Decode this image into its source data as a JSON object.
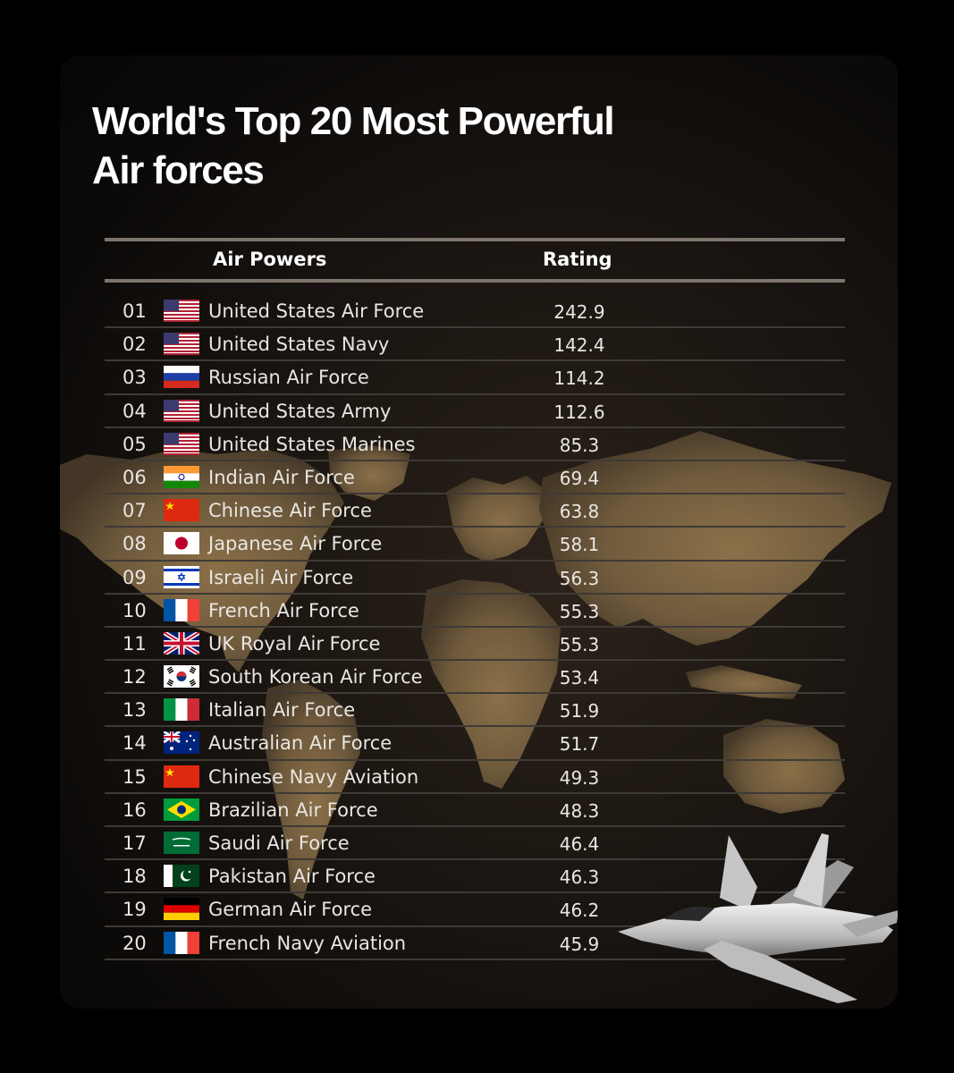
{
  "title_line1": "World's Top 20 Most Powerful",
  "title_line2": "Air forces",
  "headers": {
    "name": "Air Powers",
    "rating": "Rating"
  },
  "rows": [
    {
      "rank": "01",
      "name": "United States Air Force",
      "rating": "242.9",
      "flag": "usa-flag-icon"
    },
    {
      "rank": "02",
      "name": "United States Navy",
      "rating": "142.4",
      "flag": "usa-flag-icon"
    },
    {
      "rank": "03",
      "name": "Russian Air Force",
      "rating": "114.2",
      "flag": "russia-flag-icon"
    },
    {
      "rank": "04",
      "name": "United States Army",
      "rating": "112.6",
      "flag": "usa-flag-icon"
    },
    {
      "rank": "05",
      "name": "United States Marines",
      "rating": "85.3",
      "flag": "usa-flag-icon"
    },
    {
      "rank": "06",
      "name": "Indian Air Force",
      "rating": "69.4",
      "flag": "india-flag-icon"
    },
    {
      "rank": "07",
      "name": "Chinese Air Force",
      "rating": "63.8",
      "flag": "china-flag-icon"
    },
    {
      "rank": "08",
      "name": "Japanese Air Force",
      "rating": "58.1",
      "flag": "japan-flag-icon"
    },
    {
      "rank": "09",
      "name": "Israeli Air Force",
      "rating": "56.3",
      "flag": "israel-flag-icon"
    },
    {
      "rank": "10",
      "name": "French Air Force",
      "rating": "55.3",
      "flag": "france-flag-icon"
    },
    {
      "rank": "11",
      "name": "UK Royal Air Force",
      "rating": "55.3",
      "flag": "uk-flag-icon"
    },
    {
      "rank": "12",
      "name": "South Korean Air Force",
      "rating": "53.4",
      "flag": "south-korea-flag-icon"
    },
    {
      "rank": "13",
      "name": "Italian Air Force",
      "rating": "51.9",
      "flag": "italy-flag-icon"
    },
    {
      "rank": "14",
      "name": "Australian Air Force",
      "rating": "51.7",
      "flag": "australia-flag-icon"
    },
    {
      "rank": "15",
      "name": "Chinese Navy Aviation",
      "rating": "49.3",
      "flag": "china-flag-icon"
    },
    {
      "rank": "16",
      "name": "Brazilian Air Force",
      "rating": "48.3",
      "flag": "brazil-flag-icon"
    },
    {
      "rank": "17",
      "name": "Saudi Air Force",
      "rating": "46.4",
      "flag": "saudi-flag-icon"
    },
    {
      "rank": "18",
      "name": "Pakistan Air Force",
      "rating": "46.3",
      "flag": "pakistan-flag-icon"
    },
    {
      "rank": "19",
      "name": "German Air Force",
      "rating": "46.2",
      "flag": "germany-flag-icon"
    },
    {
      "rank": "20",
      "name": "French Navy Aviation",
      "rating": "45.9",
      "flag": "france-flag-icon"
    }
  ],
  "colors": {
    "background": "#000000",
    "panel": "#1a1511",
    "map": "#8a7048",
    "rule": "#7d746c",
    "text": "#e9e6e2"
  }
}
